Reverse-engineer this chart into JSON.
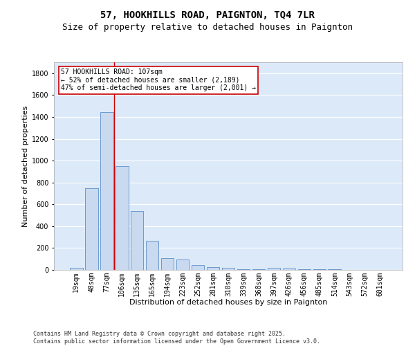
{
  "title": "57, HOOKHILLS ROAD, PAIGNTON, TQ4 7LR",
  "subtitle": "Size of property relative to detached houses in Paignton",
  "xlabel": "Distribution of detached houses by size in Paignton",
  "ylabel": "Number of detached properties",
  "categories": [
    "19sqm",
    "48sqm",
    "77sqm",
    "106sqm",
    "135sqm",
    "165sqm",
    "194sqm",
    "223sqm",
    "252sqm",
    "281sqm",
    "310sqm",
    "339sqm",
    "368sqm",
    "397sqm",
    "426sqm",
    "456sqm",
    "485sqm",
    "514sqm",
    "543sqm",
    "572sqm",
    "601sqm"
  ],
  "values": [
    22,
    748,
    1443,
    948,
    537,
    265,
    108,
    95,
    42,
    28,
    18,
    8,
    8,
    18,
    15,
    8,
    8,
    5,
    2,
    2,
    2
  ],
  "bar_color": "#c9d9f0",
  "bar_edge_color": "#5b8fc9",
  "bg_color": "#dce9f8",
  "grid_color": "#ffffff",
  "vline_color": "#cc0000",
  "annotation_text": "57 HOOKHILLS ROAD: 107sqm\n← 52% of detached houses are smaller (2,189)\n47% of semi-detached houses are larger (2,001) →",
  "annotation_box_color": "#cc0000",
  "ylim": [
    0,
    1900
  ],
  "yticks": [
    0,
    200,
    400,
    600,
    800,
    1000,
    1200,
    1400,
    1600,
    1800
  ],
  "footer": "Contains HM Land Registry data © Crown copyright and database right 2025.\nContains public sector information licensed under the Open Government Licence v3.0.",
  "title_fontsize": 10,
  "subtitle_fontsize": 9,
  "xlabel_fontsize": 8,
  "ylabel_fontsize": 8,
  "tick_fontsize": 7,
  "annotation_fontsize": 7,
  "footer_fontsize": 6
}
